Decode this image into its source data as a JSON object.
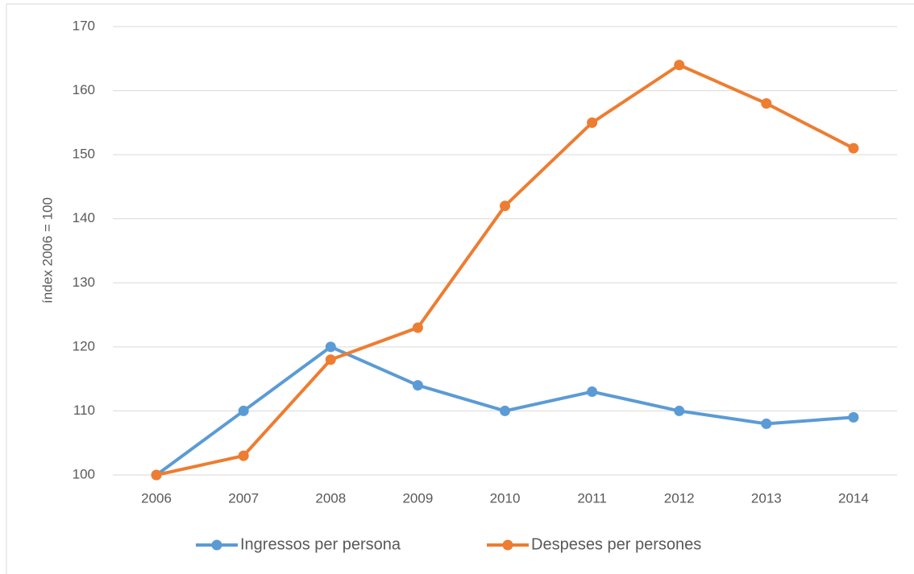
{
  "chart_data": {
    "type": "line",
    "y_label": "índex 2006 = 100",
    "categories": [
      "2006",
      "2007",
      "2008",
      "2009",
      "2010",
      "2011",
      "2012",
      "2013",
      "2014"
    ],
    "series": [
      {
        "name": "Ingressos per persona",
        "color": "#5b9bd5",
        "values": [
          100,
          110,
          120,
          114,
          110,
          113,
          110,
          108,
          109
        ]
      },
      {
        "name": "Despeses per persones",
        "color": "#ed7d31",
        "values": [
          100,
          103,
          118,
          123,
          142,
          155,
          164,
          158,
          151
        ]
      }
    ],
    "ylim": [
      100,
      170
    ],
    "yticks": [
      100,
      110,
      120,
      130,
      140,
      150,
      160,
      170
    ],
    "grid": true,
    "legend": "bottom"
  }
}
